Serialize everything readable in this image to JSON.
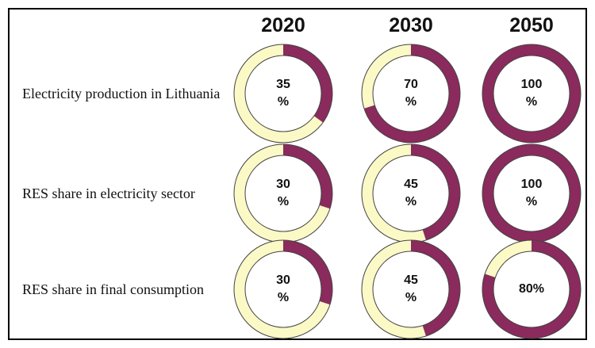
{
  "chart_data": {
    "type": "donut-grid",
    "columns": [
      "2020",
      "2030",
      "2050"
    ],
    "colors": {
      "share": "#8b2a5c",
      "rest": "#fbf9c6"
    },
    "rows": [
      {
        "label": "Electricity production in Lithuania",
        "values": [
          35,
          70,
          100
        ],
        "value_labels": [
          "35\n%",
          "70\n%",
          "100\n%"
        ]
      },
      {
        "label": "RES share in electricity sector",
        "values": [
          30,
          45,
          100
        ],
        "value_labels": [
          "30\n%",
          "45\n%",
          "100\n%"
        ]
      },
      {
        "label": "RES share in final consumption",
        "values": [
          30,
          45,
          80
        ],
        "value_labels": [
          "30\n%",
          "45\n%",
          "80%"
        ]
      }
    ]
  }
}
